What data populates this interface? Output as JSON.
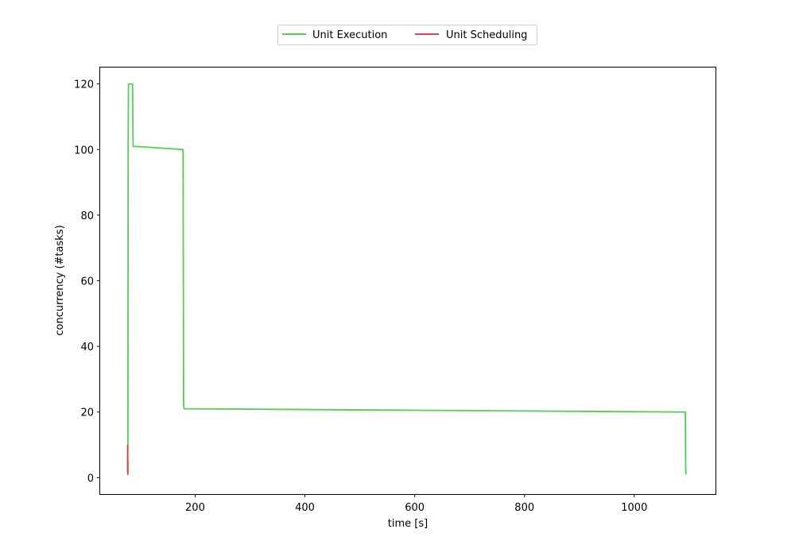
{
  "chart_data": {
    "type": "line",
    "title": "",
    "xlabel": "time [s]",
    "ylabel": "concurrency (#tasks)",
    "xlim": [
      27,
      1148
    ],
    "ylim": [
      -5,
      125
    ],
    "xticks": [
      200,
      400,
      600,
      800,
      1000
    ],
    "yticks": [
      0,
      20,
      40,
      60,
      80,
      100,
      120
    ],
    "grid": false,
    "legend": {
      "placement": "top-center-outside",
      "columns": 2
    },
    "series": [
      {
        "name": "Unit Execution",
        "color": "#55cc55",
        "x": [
          77,
          77.5,
          78,
          78.5,
          86,
          87,
          88,
          178,
          179,
          180,
          1093,
          1093.5,
          1094
        ],
        "y": [
          1,
          10,
          101,
          120,
          120,
          101,
          101,
          100,
          22,
          21,
          20,
          5,
          1
        ]
      },
      {
        "name": "Unit Scheduling",
        "color": "#dd4444",
        "x": [
          77,
          77,
          77.5,
          77.5,
          78
        ],
        "y": [
          10,
          2,
          5,
          1,
          1
        ]
      }
    ]
  }
}
